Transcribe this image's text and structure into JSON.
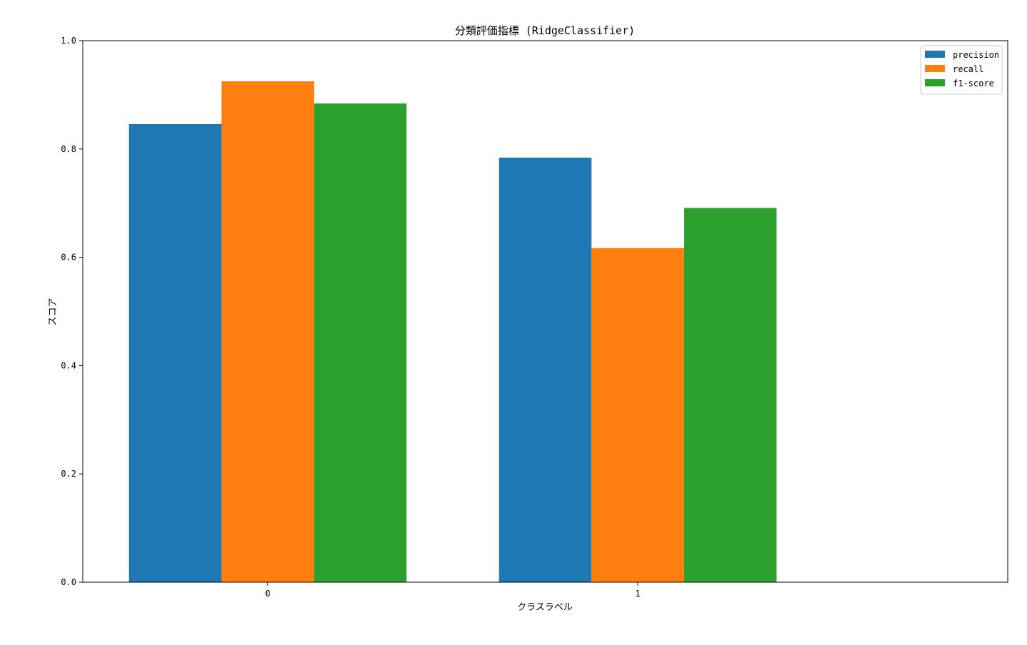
{
  "chart_data": {
    "type": "bar",
    "title": "分類評価指標 (RidgeClassifier)",
    "xlabel": "クラスラベル",
    "ylabel": "スコア",
    "categories": [
      "0",
      "1"
    ],
    "series": [
      {
        "name": "precision",
        "values": [
          0.846,
          0.784
        ],
        "color": "#1f77b4"
      },
      {
        "name": "recall",
        "values": [
          0.925,
          0.617
        ],
        "color": "#ff7f0e"
      },
      {
        "name": "f1-score",
        "values": [
          0.884,
          0.691
        ],
        "color": "#2ca02c"
      }
    ],
    "ylim": [
      0,
      1.0
    ],
    "yticks": [
      "0.0",
      "0.2",
      "0.4",
      "0.6",
      "0.8",
      "1.0"
    ],
    "grid": false,
    "legend_position": "top-right"
  }
}
